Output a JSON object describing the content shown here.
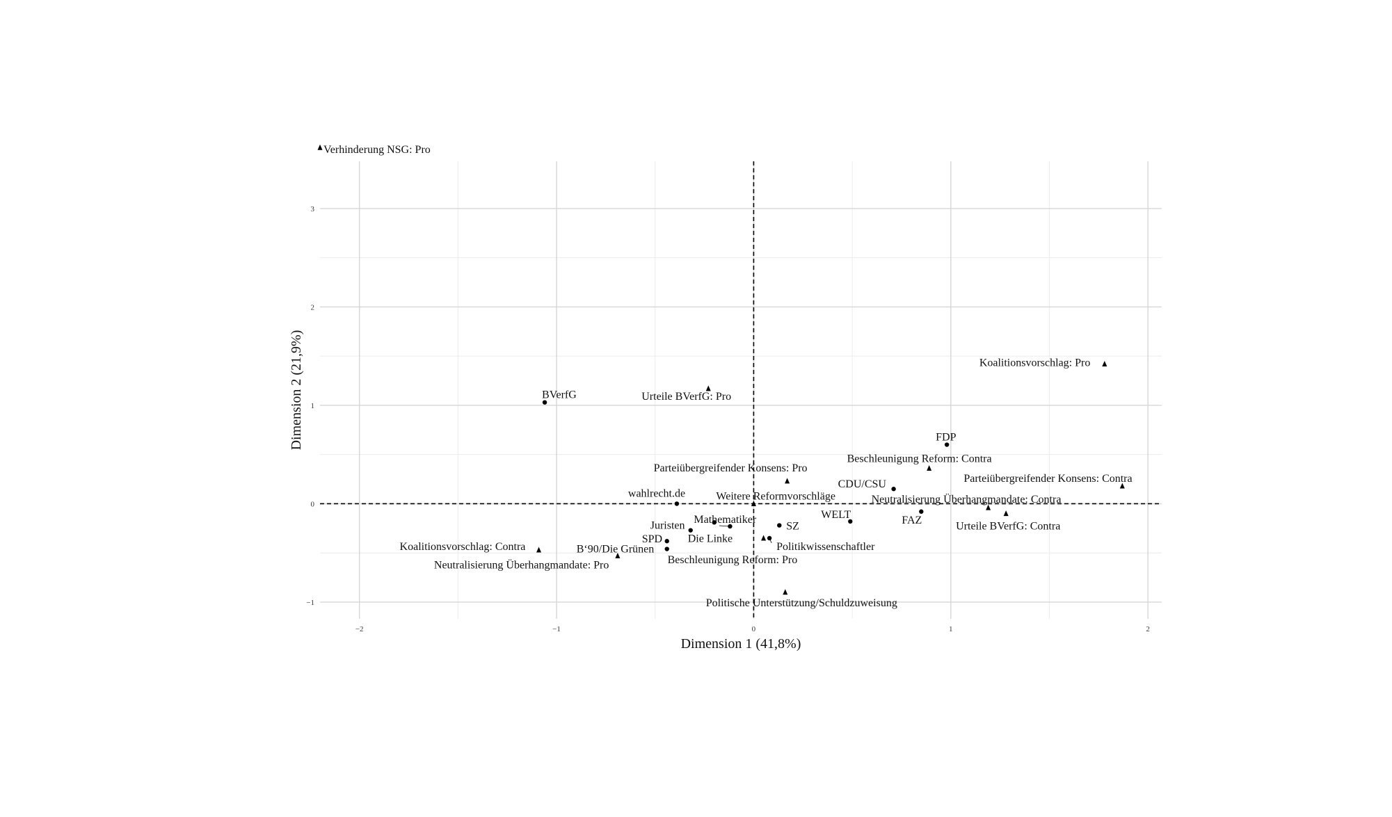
{
  "chart_data": {
    "type": "scatter",
    "title": "",
    "xlabel": "Dimension 1 (41,8%)",
    "ylabel": "Dimension 2 (21,9%)",
    "xlim": [
      -2.2,
      2.07
    ],
    "ylim": [
      -1.17,
      3.48
    ],
    "x_ticks": [
      -2,
      -1,
      0,
      1,
      2
    ],
    "x_tick_labels": [
      "−2",
      "−1",
      "0",
      "1",
      "2"
    ],
    "y_ticks": [
      -1,
      0,
      1,
      2,
      3
    ],
    "y_tick_labels": [
      "−1",
      "0",
      "1",
      "2",
      "3"
    ],
    "grid": true,
    "reference_lines": [
      {
        "axis": "x",
        "value": 0,
        "style": "dashed"
      },
      {
        "axis": "y",
        "value": 0,
        "style": "dashed"
      }
    ],
    "series": [
      {
        "name": "",
        "marker": "circle",
        "points": [
          {
            "label": "BVerfG",
            "x": -1.06,
            "y": 1.03
          },
          {
            "label": "FDP",
            "x": 0.98,
            "y": 0.6
          },
          {
            "label": "CDU/CSU",
            "x": 0.71,
            "y": 0.15
          },
          {
            "label": "wahlrecht.de",
            "x": -0.39,
            "y": 0.0
          },
          {
            "label": "WELT",
            "x": 0.49,
            "y": -0.18
          },
          {
            "label": "FAZ",
            "x": 0.85,
            "y": -0.08
          },
          {
            "label": "Mathematiker",
            "x": -0.12,
            "y": -0.23
          },
          {
            "label": "SZ",
            "x": 0.13,
            "y": -0.22
          },
          {
            "label": "Juristen",
            "x": -0.32,
            "y": -0.27
          },
          {
            "label": "Die Linke",
            "x": -0.2,
            "y": -0.19
          },
          {
            "label": "SPD",
            "x": -0.44,
            "y": -0.38
          },
          {
            "label": "Politikwissenschaftler",
            "x": 0.08,
            "y": -0.35
          },
          {
            "label": "B‘90/Die Grünen",
            "x": -0.44,
            "y": -0.46
          }
        ]
      },
      {
        "name": "",
        "marker": "triangle",
        "points": [
          {
            "label": "Verhinderung NSG: Pro",
            "x": -2.2,
            "y": 3.62
          },
          {
            "label": "Koalitionsvorschlag: Pro",
            "x": 1.78,
            "y": 1.42
          },
          {
            "label": "Urteile BVerfG: Pro",
            "x": -0.23,
            "y": 1.17
          },
          {
            "label": "Beschleunigung Reform: Contra",
            "x": 0.89,
            "y": 0.36
          },
          {
            "label": "Parteiübergreifender Konsens: Pro",
            "x": 0.17,
            "y": 0.23
          },
          {
            "label": "Parteiübergreifender Konsens: Contra",
            "x": 1.87,
            "y": 0.18
          },
          {
            "label": "Weitere Reformvorschläge",
            "x": 0.0,
            "y": 0.0
          },
          {
            "label": "Neutralisierung Überhangmandate: Contra",
            "x": 1.19,
            "y": -0.04
          },
          {
            "label": "Urteile BVerfG: Contra",
            "x": 1.28,
            "y": -0.1
          },
          {
            "label": "Koalitionsvorschlag: Contra",
            "x": -1.09,
            "y": -0.47
          },
          {
            "label": "Neutralisierung Überhangmandate: Pro",
            "x": -0.69,
            "y": -0.53
          },
          {
            "label": "Beschleunigung Reform: Pro",
            "x": 0.05,
            "y": -0.35
          },
          {
            "label": "Politische Unterstützung/Schuldzuweisung",
            "x": 0.16,
            "y": -0.9
          }
        ]
      }
    ]
  }
}
